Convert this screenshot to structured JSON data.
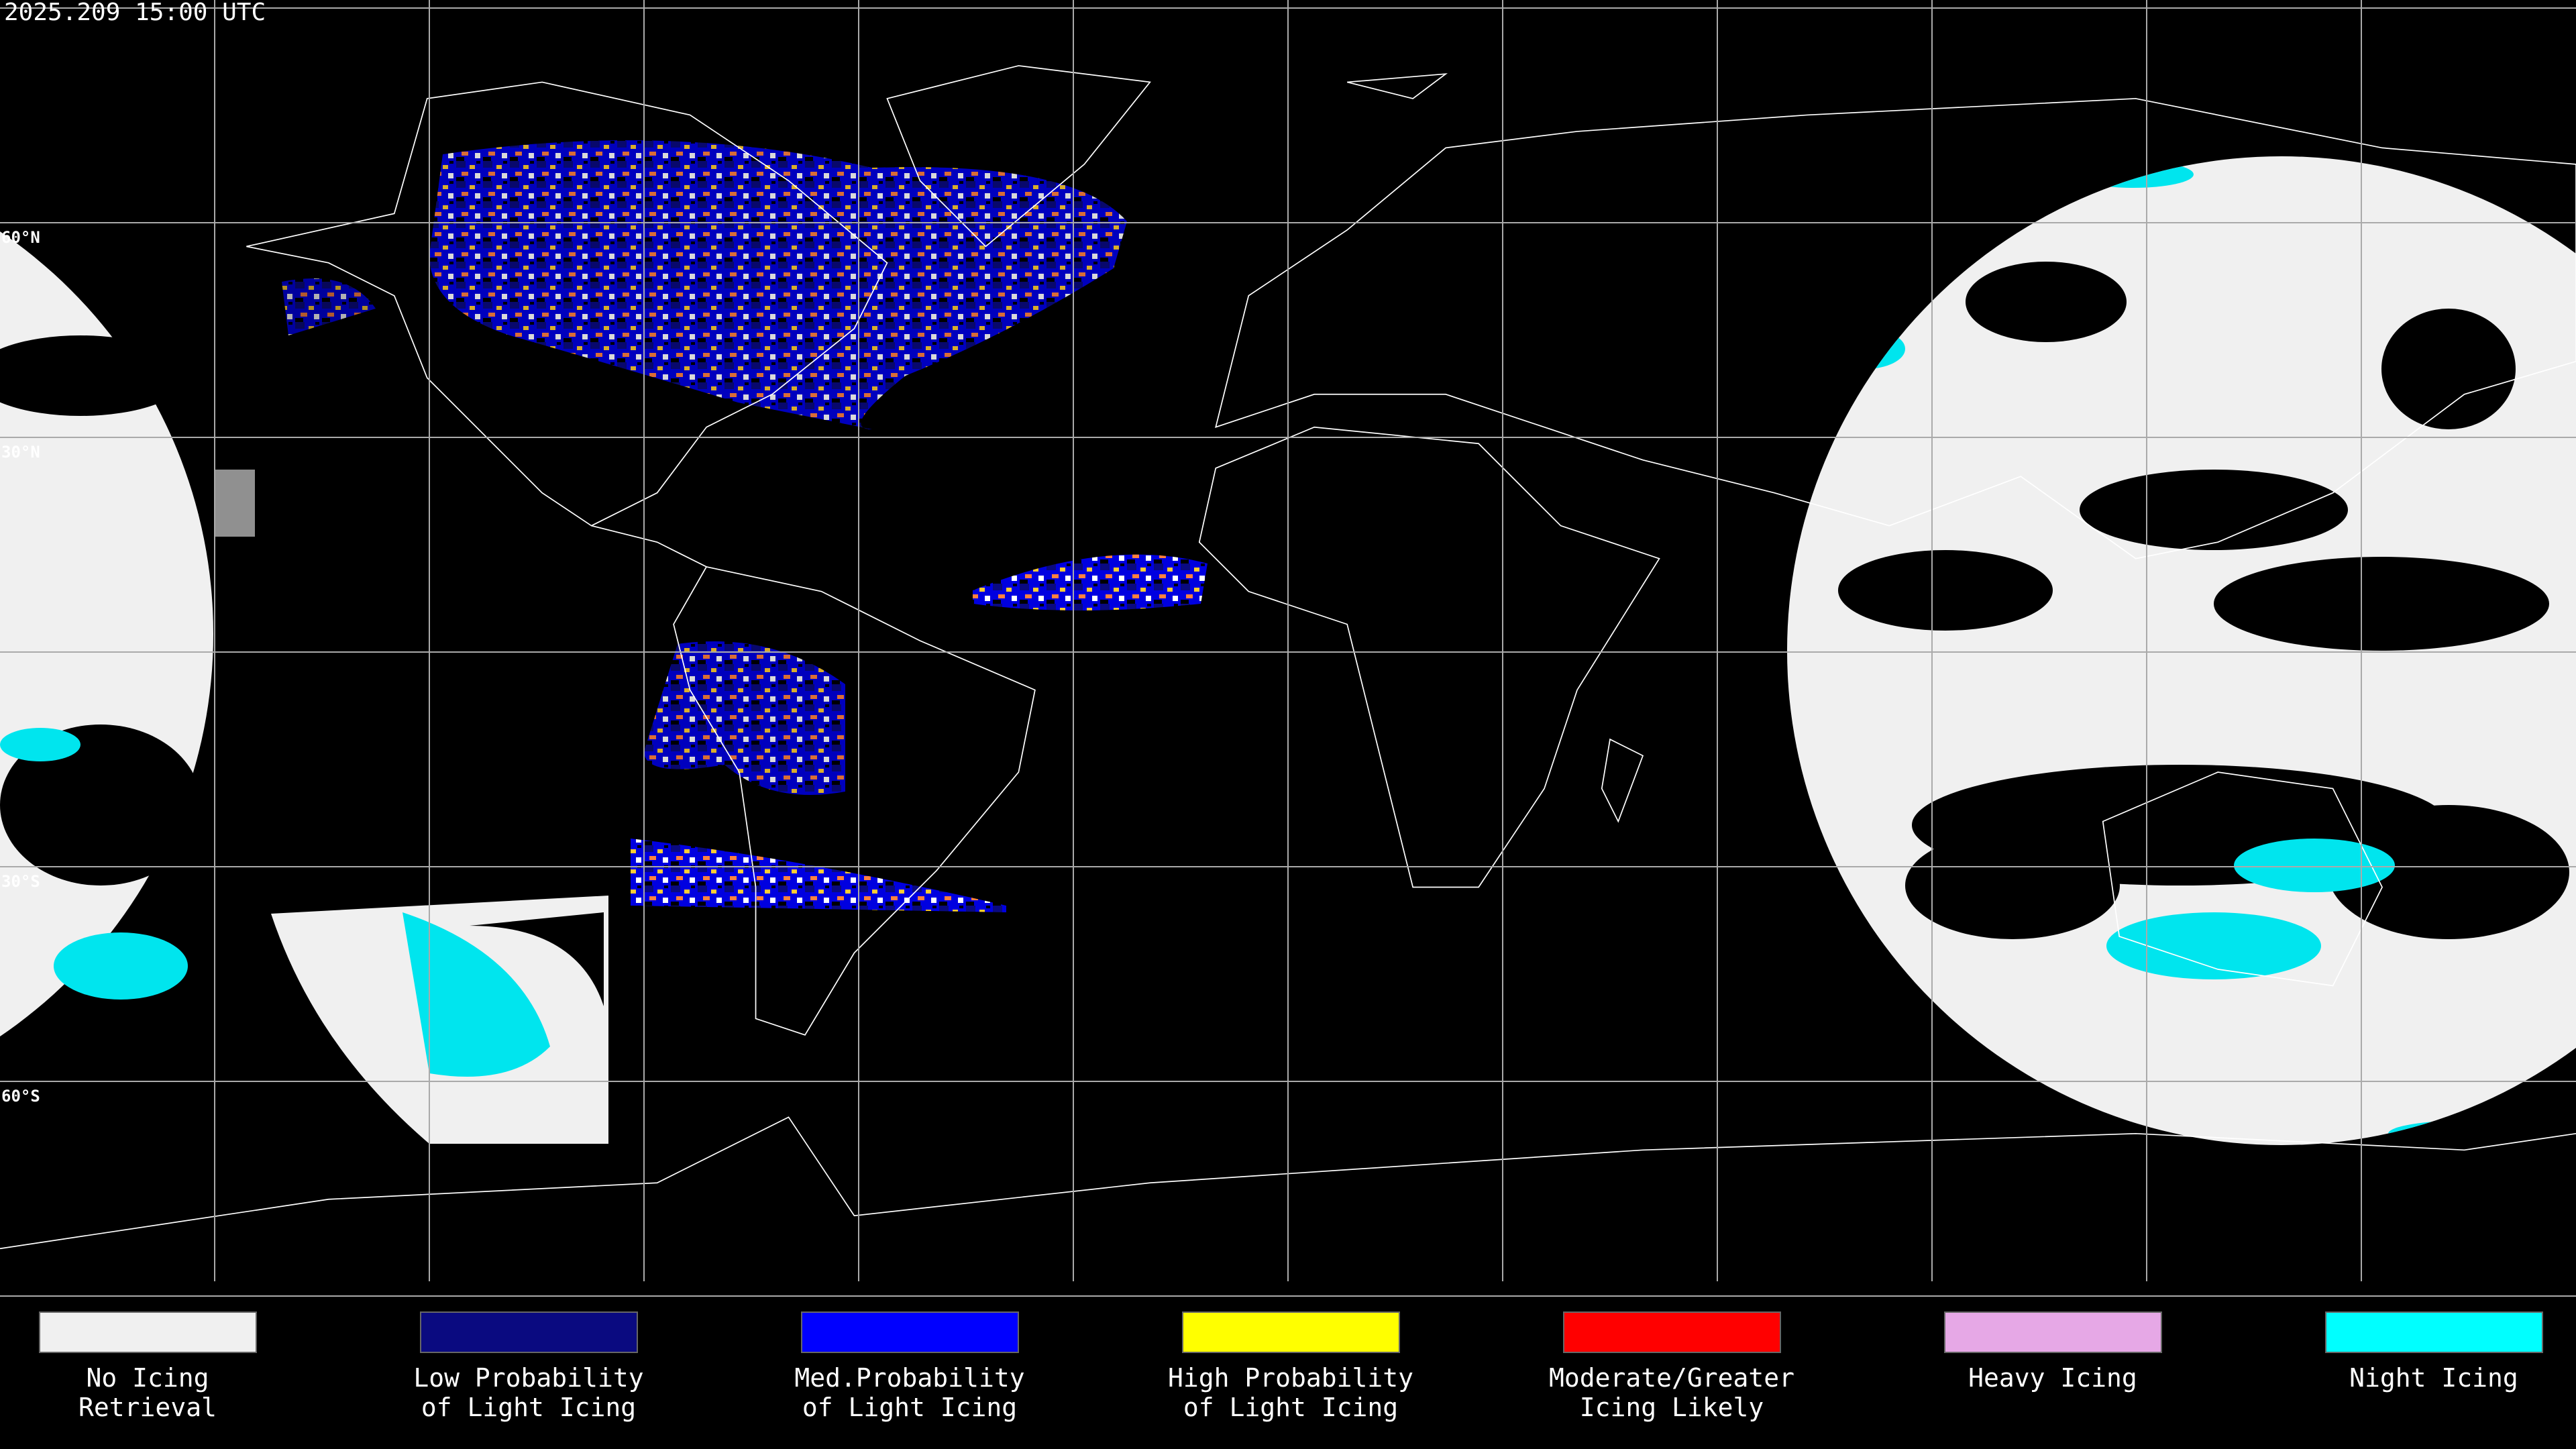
{
  "header": {
    "timestamp": "2025.209 15:00 UTC"
  },
  "map": {
    "latitude_labels": [
      "60°N",
      "30°N",
      "30°S",
      "60°S"
    ]
  },
  "legend": {
    "items": [
      {
        "color": "#f0f0f0",
        "lines": [
          "No Icing",
          "Retrieval"
        ]
      },
      {
        "color": "#0a0a80",
        "lines": [
          "Low Probability",
          "of Light Icing"
        ]
      },
      {
        "color": "#0000ff",
        "lines": [
          "Med.Probability",
          "of Light Icing"
        ]
      },
      {
        "color": "#ffff00",
        "lines": [
          "High Probability",
          "of Light Icing"
        ]
      },
      {
        "color": "#ff0000",
        "lines": [
          "Moderate/Greater",
          "Icing Likely"
        ]
      },
      {
        "color": "#e6a8e6",
        "lines": [
          "Heavy Icing"
        ]
      },
      {
        "color": "#00ffff",
        "lines": [
          "Night Icing"
        ]
      }
    ]
  }
}
